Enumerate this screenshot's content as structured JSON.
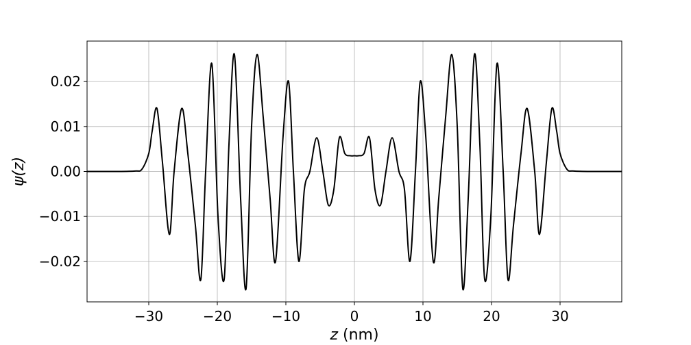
{
  "chart_data": {
    "type": "line",
    "title": "",
    "xlabel_var": "z",
    "xlabel_unit": " (nm)",
    "ylabel": "ψ(z)",
    "xlim": [
      -39,
      39
    ],
    "ylim": [
      -0.029,
      0.029
    ],
    "x_ticks": [
      -30,
      -20,
      -10,
      0,
      10,
      20,
      30
    ],
    "x_tick_labels": [
      "−30",
      "−20",
      "−10",
      "0",
      "10",
      "20",
      "30"
    ],
    "y_ticks": [
      -0.02,
      -0.01,
      0.0,
      0.01,
      0.02
    ],
    "y_tick_labels": [
      "−0.02",
      "−0.01",
      "0.00",
      "0.01",
      "0.02"
    ],
    "grid": true,
    "legend": "none",
    "line_color": "#000000",
    "series": [
      {
        "x": [
          -39,
          -35,
          -32,
          -31,
          -30,
          -29.5,
          -28.8,
          -28.0,
          -27.0,
          -26.3,
          -25.2,
          -24.3,
          -23.2,
          -22.4,
          -21.7,
          -20.8,
          -19.9,
          -19.0,
          -18.3,
          -17.5,
          -16.6,
          -15.8,
          -15.0,
          -14.2,
          -13.3,
          -12.3,
          -11.5,
          -10.4,
          -9.6,
          -8.9,
          -8.1,
          -7.3,
          -6.5,
          -5.5,
          -4.6,
          -3.8,
          -3.0,
          -2.2,
          -1.4,
          -0.6,
          0,
          0.6,
          1.4,
          2.2,
          3.0,
          3.8,
          4.6,
          5.5,
          6.5,
          7.3,
          8.1,
          8.9,
          9.6,
          10.4,
          11.5,
          12.3,
          13.3,
          14.2,
          15.0,
          15.8,
          16.6,
          17.5,
          18.3,
          19.0,
          19.9,
          20.8,
          21.7,
          22.4,
          23.2,
          24.3,
          25.2,
          26.3,
          27.0,
          28.0,
          28.8,
          29.5,
          30,
          31,
          32,
          35,
          39
        ],
        "y": [
          0,
          0,
          0.0001,
          0.0005,
          0.004,
          0.009,
          0.014,
          0.002,
          -0.014,
          0.0,
          0.014,
          0.004,
          -0.012,
          -0.024,
          0.0,
          0.024,
          -0.01,
          -0.024,
          0.006,
          0.026,
          -0.006,
          -0.026,
          0.01,
          0.026,
          0.012,
          -0.006,
          -0.02,
          0.008,
          0.02,
          0.0,
          -0.02,
          -0.004,
          0.0,
          0.0075,
          0.0,
          -0.0075,
          -0.004,
          0.0075,
          0.004,
          0.0035,
          0.0035,
          0.0035,
          0.004,
          0.0075,
          -0.004,
          -0.0075,
          0.0,
          0.0075,
          0.0,
          -0.004,
          -0.02,
          0.0,
          0.02,
          0.008,
          -0.02,
          -0.006,
          0.012,
          0.026,
          0.01,
          -0.026,
          -0.006,
          0.026,
          0.006,
          -0.024,
          -0.01,
          0.024,
          0.0,
          -0.024,
          -0.012,
          0.004,
          0.014,
          0.0,
          -0.014,
          0.002,
          0.014,
          0.009,
          0.004,
          0.0005,
          0.0001,
          0,
          0
        ]
      }
    ]
  }
}
